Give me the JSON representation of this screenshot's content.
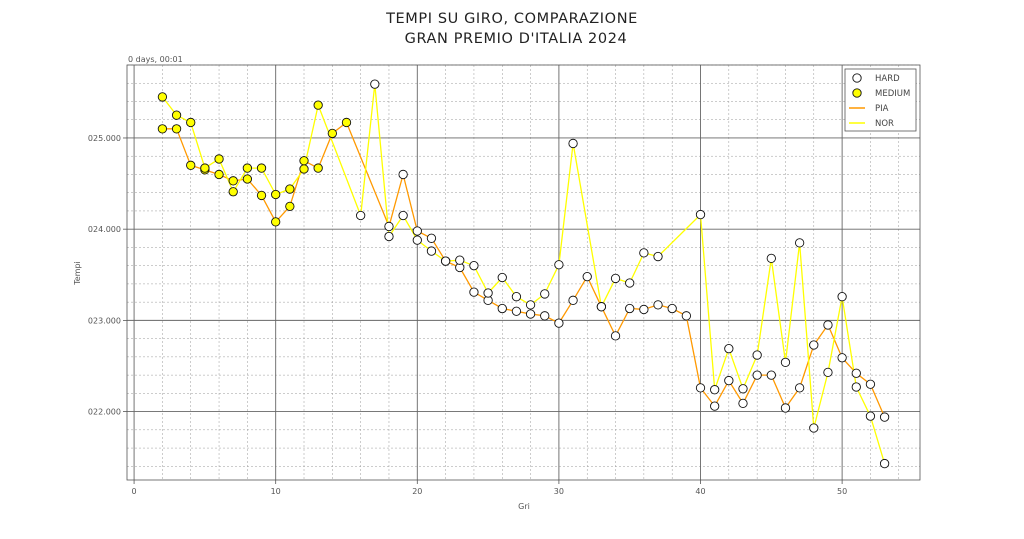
{
  "chart_data": {
    "type": "line",
    "title_lines": [
      "TEMPI SU GIRO, COMPARAZIONE",
      "GRAN PREMIO D'ITALIA 2024"
    ],
    "xlabel": "Gri",
    "ylabel": "Tempi",
    "y_offset_label": "0 days, 00:01",
    "xlim": [
      -0.5,
      55.5
    ],
    "ylim": [
      21.25,
      25.8
    ],
    "x_ticks": [
      0,
      10,
      20,
      30,
      40,
      50
    ],
    "x_tick_labels": [
      "0",
      "10",
      "20",
      "30",
      "40",
      "50"
    ],
    "y_ticks": [
      22,
      23,
      24,
      25
    ],
    "y_tick_labels": [
      "022.000",
      "023.000",
      "024.000",
      "025.000"
    ],
    "grid": true,
    "legend": {
      "placement": "top-right",
      "entries": [
        {
          "label": "HARD",
          "kind": "marker",
          "color": "#ffffff"
        },
        {
          "label": "MEDIUM",
          "kind": "marker",
          "color": "#ffff00"
        },
        {
          "label": "PIA",
          "kind": "line",
          "color": "#ff9900"
        },
        {
          "label": "NOR",
          "kind": "line",
          "color": "#ffff00"
        }
      ]
    },
    "series": [
      {
        "name": "PIA",
        "color": "#ff9900",
        "x": [
          2,
          3,
          4,
          5,
          6,
          7,
          8,
          9,
          10,
          11,
          12,
          13,
          14,
          15,
          18,
          19,
          20,
          21,
          22,
          23,
          24,
          25,
          26,
          27,
          28,
          29,
          30,
          31,
          32,
          33,
          34,
          35,
          36,
          37,
          38,
          39,
          40,
          41,
          42,
          43,
          44,
          45,
          46,
          47,
          48,
          49,
          50,
          51,
          52,
          53
        ],
        "y": [
          25.1,
          25.1,
          24.7,
          24.65,
          24.6,
          24.53,
          24.55,
          24.37,
          24.08,
          24.25,
          24.75,
          24.67,
          25.05,
          25.17,
          24.03,
          24.6,
          23.98,
          23.9,
          23.65,
          23.58,
          23.31,
          23.22,
          23.13,
          23.1,
          23.07,
          23.05,
          22.97,
          23.22,
          23.48,
          23.15,
          22.83,
          23.13,
          23.12,
          23.17,
          23.13,
          23.05,
          22.26,
          22.06,
          22.34,
          22.09,
          22.4,
          22.4,
          22.04,
          22.26,
          22.73,
          22.95,
          22.59,
          22.42,
          22.3,
          21.94
        ],
        "markers": [
          "MEDIUM",
          "MEDIUM",
          "MEDIUM",
          "MEDIUM",
          "MEDIUM",
          "MEDIUM",
          "MEDIUM",
          "MEDIUM",
          "MEDIUM",
          "MEDIUM",
          "MEDIUM",
          "MEDIUM",
          "MEDIUM",
          "MEDIUM",
          "HARD",
          "HARD",
          "HARD",
          "HARD",
          "HARD",
          "HARD",
          "HARD",
          "HARD",
          "HARD",
          "HARD",
          "HARD",
          "HARD",
          "HARD",
          "HARD",
          "HARD",
          "HARD",
          "HARD",
          "HARD",
          "HARD",
          "HARD",
          "HARD",
          "HARD",
          "HARD",
          "HARD",
          "HARD",
          "HARD",
          "HARD",
          "HARD",
          "HARD",
          "HARD",
          "HARD",
          "HARD",
          "HARD",
          "HARD",
          "HARD",
          "HARD"
        ]
      },
      {
        "name": "NOR",
        "color": "#ffff00",
        "x": [
          2,
          3,
          4,
          5,
          6,
          7,
          8,
          9,
          10,
          11,
          12,
          13,
          16,
          17,
          18,
          19,
          20,
          21,
          22,
          23,
          24,
          25,
          26,
          27,
          28,
          29,
          30,
          31,
          33,
          34,
          35,
          36,
          37,
          40,
          41,
          42,
          43,
          44,
          45,
          46,
          47,
          48,
          49,
          50,
          51,
          52,
          53
        ],
        "y": [
          25.45,
          25.25,
          25.17,
          24.67,
          24.77,
          24.41,
          24.67,
          24.67,
          24.38,
          24.44,
          24.66,
          25.36,
          24.15,
          25.59,
          23.92,
          24.15,
          23.88,
          23.76,
          23.65,
          23.66,
          23.6,
          23.3,
          23.47,
          23.26,
          23.17,
          23.29,
          23.61,
          24.94,
          23.15,
          23.46,
          23.41,
          23.74,
          23.7,
          24.16,
          22.24,
          22.69,
          22.25,
          22.62,
          23.68,
          22.54,
          23.85,
          21.82,
          22.43,
          23.26,
          22.27,
          21.95,
          21.43
        ],
        "markers": [
          "MEDIUM",
          "MEDIUM",
          "MEDIUM",
          "MEDIUM",
          "MEDIUM",
          "MEDIUM",
          "MEDIUM",
          "MEDIUM",
          "MEDIUM",
          "MEDIUM",
          "MEDIUM",
          "MEDIUM",
          "HARD",
          "HARD",
          "HARD",
          "HARD",
          "HARD",
          "HARD",
          "HARD",
          "HARD",
          "HARD",
          "HARD",
          "HARD",
          "HARD",
          "HARD",
          "HARD",
          "HARD",
          "HARD",
          "HARD",
          "HARD",
          "HARD",
          "HARD",
          "HARD",
          "HARD",
          "HARD",
          "HARD",
          "HARD",
          "HARD",
          "HARD",
          "HARD",
          "HARD",
          "HARD",
          "HARD",
          "HARD",
          "HARD",
          "HARD",
          "HARD"
        ]
      }
    ]
  }
}
